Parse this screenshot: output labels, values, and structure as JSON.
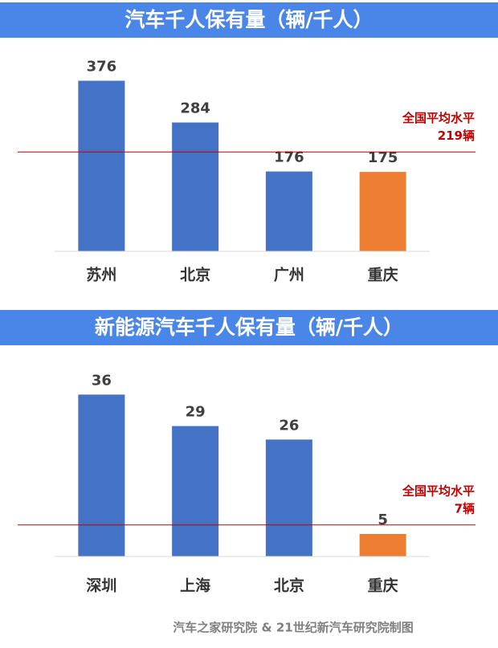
{
  "chart_data": [
    {
      "type": "bar",
      "title": "汽车千人保有量（辆/千人）",
      "categories": [
        "苏州",
        "北京",
        "广州",
        "重庆"
      ],
      "values": [
        376,
        284,
        176,
        175
      ],
      "colors": [
        "#4472c4",
        "#4472c4",
        "#4472c4",
        "#ed7d31"
      ],
      "ylim": [
        0,
        400
      ],
      "reference": {
        "value": 219,
        "label": "219辆",
        "text": "全国平均水平",
        "color": "#c00000"
      }
    },
    {
      "type": "bar",
      "title": "新能源汽车千人保有量（辆/千人）",
      "categories": [
        "深圳",
        "上海",
        "北京",
        "重庆"
      ],
      "values": [
        36,
        29,
        26,
        5
      ],
      "colors": [
        "#4472c4",
        "#4472c4",
        "#4472c4",
        "#ed7d31"
      ],
      "ylim": [
        0,
        40
      ],
      "reference": {
        "value": 7,
        "label": "7辆",
        "text": "全国平均水平",
        "color": "#c00000"
      }
    }
  ],
  "source": "汽车之家研究院 & 21世纪新汽车研究院制图"
}
